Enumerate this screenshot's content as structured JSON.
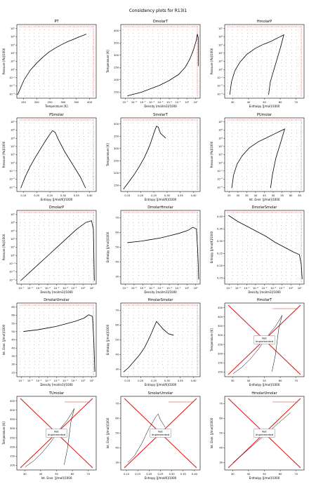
{
  "page": {
    "title": "Consistency plots for R13I1"
  },
  "colors": {
    "background": "#ffffff",
    "axis": "#000000",
    "curve": "#000000",
    "dots": "#555555",
    "highlight": "#e03030",
    "cross": "#e01010"
  },
  "chart_data": [
    {
      "id": "PT",
      "title": "PT",
      "type": "scatter",
      "xlabel": "Temperature [K]",
      "ylabel": "Pressure [Pa]/1000",
      "x_ticks": [
        "150",
        "200",
        "250",
        "300",
        "350",
        "400"
      ],
      "y_ticks": [
        "10⁻³",
        "10⁻²",
        "10⁻¹",
        "10⁰",
        "10¹",
        "10²",
        "10³",
        "10⁴",
        "10⁵"
      ],
      "xlim": [
        120,
        440
      ],
      "ylim_log10": [
        -3.4,
        5.2
      ],
      "y_log": true,
      "series": [
        {
          "role": "saturation",
          "x": [
            123,
            150,
            175,
            200,
            225,
            250,
            275,
            300,
            325,
            350,
            375,
            400
          ],
          "y": [
            -3.0,
            -1.2,
            -0.1,
            0.7,
            1.4,
            2.0,
            2.45,
            2.85,
            3.2,
            3.5,
            3.8,
            4.08
          ]
        }
      ],
      "not_implemented": false
    },
    {
      "id": "DmolarT",
      "title": "DmolarT",
      "type": "scatter",
      "xlabel": "Density [mol/m3]/1000",
      "ylabel": "Temperature [K]",
      "x_ticks": [
        "10⁻⁷",
        "10⁻⁶",
        "10⁻⁵",
        "10⁻⁴",
        "10⁻³",
        "10⁻²",
        "10⁻¹",
        "10⁰",
        "10¹"
      ],
      "y_ticks": [
        "150",
        "200",
        "250",
        "300",
        "350",
        "400"
      ],
      "x_log": true,
      "xlim_log10": [
        -7.2,
        1.3
      ],
      "ylim": [
        115,
        425
      ],
      "series": [
        {
          "role": "saturation",
          "x": [
            -6.5,
            -5,
            -4,
            -3,
            -2,
            -1,
            -0.3,
            0.2,
            0.6,
            0.9,
            1.0,
            1.1,
            1.1
          ],
          "y": [
            125,
            140,
            155,
            170,
            190,
            215,
            245,
            280,
            320,
            360,
            385,
            370,
            250
          ]
        }
      ],
      "not_implemented": false
    },
    {
      "id": "HmolarP",
      "title": "HmolarP",
      "type": "scatter",
      "xlabel": "Enthalpy [J/mol]/1000",
      "ylabel": "Pressure [Pa]/1000",
      "x_ticks": [
        "30",
        "40",
        "50",
        "60",
        "70"
      ],
      "y_ticks": [
        "10⁻³",
        "10⁻²",
        "10⁻¹",
        "10⁰",
        "10¹",
        "10²",
        "10³",
        "10⁴",
        "10⁵"
      ],
      "xlim": [
        25,
        72
      ],
      "ylim_log10": [
        -3.4,
        5.2
      ],
      "y_log": true,
      "series": [
        {
          "role": "saturation",
          "x": [
            28,
            29,
            31,
            34,
            38,
            43,
            48,
            52,
            55,
            57,
            59,
            60,
            58,
            55,
            52,
            51
          ],
          "y": [
            -3,
            -1.5,
            -0.2,
            0.8,
            1.7,
            2.4,
            2.9,
            3.2,
            3.5,
            3.7,
            3.9,
            4.0,
            2.5,
            0.5,
            -1.5,
            -3
          ]
        }
      ],
      "not_implemented": false
    },
    {
      "id": "PSmolar",
      "title": "PSmolar",
      "type": "scatter",
      "xlabel": "Entropy [J/mol/K]/1000",
      "ylabel": "Pressure [Pa]/1000",
      "x_ticks": [
        "0.15",
        "0.20",
        "0.25",
        "0.30",
        "0.35",
        "0.40"
      ],
      "y_ticks": [
        "10⁻³",
        "10⁻²",
        "10⁻¹",
        "10⁰",
        "10¹",
        "10²",
        "10³",
        "10⁴",
        "10⁵"
      ],
      "xlim": [
        0.12,
        0.42
      ],
      "ylim_log10": [
        -3.4,
        5.2
      ],
      "y_log": true,
      "series": [
        {
          "role": "saturation",
          "x": [
            0.135,
            0.15,
            0.17,
            0.19,
            0.21,
            0.23,
            0.245,
            0.255,
            0.265,
            0.275,
            0.3,
            0.33,
            0.36,
            0.38
          ],
          "y": [
            -3,
            -1.8,
            -0.5,
            0.6,
            1.6,
            2.6,
            3.3,
            3.7,
            3.5,
            2.8,
            1.3,
            -0.2,
            -1.7,
            -3
          ]
        }
      ],
      "not_implemented": false
    },
    {
      "id": "SmolarT",
      "title": "SmolarT",
      "type": "scatter",
      "xlabel": "Entropy [J/mol/K]/1000",
      "ylabel": "Temperature [K]",
      "x_ticks": [
        "0.15",
        "0.20",
        "0.25",
        "0.30",
        "0.35",
        "0.40"
      ],
      "y_ticks": [
        "150",
        "200",
        "250",
        "300",
        "350",
        "400"
      ],
      "xlim": [
        0.12,
        0.42
      ],
      "ylim": [
        115,
        425
      ],
      "series": [
        {
          "role": "saturation",
          "x": [
            0.13,
            0.15,
            0.17,
            0.19,
            0.21,
            0.23,
            0.245,
            0.255,
            0.262,
            0.27,
            0.29
          ],
          "y": [
            125,
            155,
            185,
            220,
            260,
            310,
            360,
            390,
            385,
            360,
            340
          ]
        }
      ],
      "not_implemented": false
    },
    {
      "id": "PUmolar",
      "title": "PUmolar",
      "type": "scatter",
      "xlabel": "Int. Ener. [J/mol]/1000",
      "ylabel": "Pressure [Pa]/1000",
      "x_ticks": [
        "25",
        "30",
        "35",
        "40",
        "45",
        "50",
        "55",
        "60",
        "65"
      ],
      "y_ticks": [
        "10⁻³",
        "10⁻²",
        "10⁻¹",
        "10⁰",
        "10¹",
        "10²",
        "10³",
        "10⁴",
        "10⁵"
      ],
      "xlim": [
        23,
        68
      ],
      "ylim_log10": [
        -3.4,
        5.2
      ],
      "y_log": true,
      "series": [
        {
          "role": "saturation",
          "x": [
            27,
            28,
            30,
            33,
            37,
            42,
            47,
            51,
            54,
            56,
            57,
            55,
            52,
            50,
            49
          ],
          "y": [
            -3,
            -1.5,
            -0.2,
            0.8,
            1.7,
            2.4,
            2.9,
            3.3,
            3.6,
            3.8,
            3.9,
            2.5,
            0.5,
            -1.5,
            -3
          ]
        }
      ],
      "not_implemented": false
    },
    {
      "id": "DmolarP",
      "title": "DmolarP",
      "type": "scatter",
      "xlabel": "Density [mol/m3]/1000",
      "ylabel": "Pressure [Pa]/1000",
      "x_ticks": [
        "10⁻⁷",
        "10⁻⁶",
        "10⁻⁵",
        "10⁻⁴",
        "10⁻³",
        "10⁻²",
        "10⁻¹",
        "10⁰",
        "10¹"
      ],
      "y_ticks": [
        "10⁻³",
        "10⁻²",
        "10⁻¹",
        "10⁰",
        "10¹",
        "10²",
        "10³",
        "10⁴",
        "10⁵"
      ],
      "x_log": true,
      "y_log": true,
      "xlim_log10": [
        -7.2,
        1.3
      ],
      "ylim_log10": [
        -3.4,
        5.2
      ],
      "series": [
        {
          "role": "saturation",
          "x": [
            -6.8,
            -5.8,
            -4.8,
            -3.8,
            -2.8,
            -1.8,
            -0.8,
            0.2,
            0.8,
            1.0,
            1.1
          ],
          "y": [
            -3,
            -2,
            -1,
            0,
            1,
            2,
            3,
            3.8,
            4.0,
            3.0,
            -3.0
          ]
        }
      ],
      "not_implemented": false
    },
    {
      "id": "DmolarHmolar",
      "title": "DmolarHmolar",
      "type": "scatter",
      "xlabel": "Density [mol/m3]/1000",
      "ylabel": "Enthalpy [J/mol]/1000",
      "x_ticks": [
        "10⁻⁷",
        "10⁻⁶",
        "10⁻⁵",
        "10⁻⁴",
        "10⁻³",
        "10⁻²",
        "10⁻¹",
        "10⁰",
        "10¹"
      ],
      "y_ticks": [
        "30",
        "40",
        "50",
        "60",
        "70"
      ],
      "x_log": true,
      "xlim_log10": [
        -7.2,
        1.3
      ],
      "ylim": [
        24,
        72
      ],
      "series": [
        {
          "role": "saturation",
          "x": [
            -6.5,
            -5,
            -4,
            -3,
            -2,
            -1,
            0,
            0.5,
            0.9,
            1.05,
            1.15
          ],
          "y": [
            51,
            52,
            53,
            54,
            55.5,
            57,
            59,
            61,
            60,
            45,
            27
          ]
        }
      ],
      "not_implemented": false
    },
    {
      "id": "DmolarSmolar",
      "title": "DmolarSmolar",
      "type": "scatter",
      "xlabel": "Density [mol/m3]/1000",
      "ylabel": "Entropy [J/mol/K]/1000",
      "x_ticks": [
        "10⁻⁷",
        "10⁻⁶",
        "10⁻⁵",
        "10⁻⁴",
        "10⁻³",
        "10⁻²",
        "10⁻¹",
        "10⁰",
        "10¹"
      ],
      "y_ticks": [
        "0.15",
        "0.20",
        "0.25",
        "0.30",
        "0.35",
        "0.40"
      ],
      "x_log": true,
      "xlim_log10": [
        -7.2,
        1.3
      ],
      "ylim": [
        0.12,
        0.42
      ],
      "series": [
        {
          "role": "saturation",
          "x": [
            -6.8,
            -5.8,
            -4.8,
            -3.8,
            -2.8,
            -1.8,
            -0.8,
            0.2,
            0.8,
            1.0,
            1.1
          ],
          "y": [
            0.4,
            0.375,
            0.355,
            0.335,
            0.315,
            0.29,
            0.27,
            0.25,
            0.24,
            0.2,
            0.14
          ]
        }
      ],
      "not_implemented": false
    },
    {
      "id": "DmolarUmolar",
      "title": "DmolarUmolar",
      "type": "scatter",
      "xlabel": "Density [mol/m3]/1000",
      "ylabel": "Int. Ener. [J/mol]/1000",
      "x_ticks": [
        "10⁻⁷",
        "10⁻⁶",
        "10⁻⁵",
        "10⁻⁴",
        "10⁻³",
        "10⁻²",
        "10⁻¹",
        "10⁰",
        "10¹"
      ],
      "y_ticks": [
        "25",
        "30",
        "35",
        "40",
        "45",
        "50",
        "55",
        "60",
        "65"
      ],
      "x_log": true,
      "xlim_log10": [
        -7.2,
        1.3
      ],
      "ylim": [
        23,
        67
      ],
      "series": [
        {
          "role": "saturation",
          "x": [
            -6.5,
            -5,
            -4,
            -3,
            -2,
            -1,
            0,
            0.5,
            0.9,
            1.05,
            1.15
          ],
          "y": [
            50,
            51,
            52,
            53,
            54.5,
            56,
            58,
            60,
            59,
            44,
            26
          ]
        }
      ],
      "not_implemented": false
    },
    {
      "id": "HmolarSmolar",
      "title": "HmolarSmolar",
      "type": "scatter",
      "xlabel": "Entropy [J/mol/K]/1000",
      "ylabel": "Enthalpy [J/mol]/1000",
      "x_ticks": [
        "0.15",
        "0.20",
        "0.25",
        "0.30",
        "0.35",
        "0.40"
      ],
      "y_ticks": [
        "30",
        "40",
        "50",
        "60",
        "70"
      ],
      "xlim": [
        0.12,
        0.42
      ],
      "ylim": [
        24,
        72
      ],
      "series": [
        {
          "role": "saturation",
          "x": [
            0.13,
            0.15,
            0.17,
            0.19,
            0.21,
            0.23,
            0.245,
            0.255,
            0.265,
            0.28,
            0.3,
            0.32
          ],
          "y": [
            27,
            30,
            34,
            38,
            43,
            50,
            56,
            60,
            58,
            55,
            52,
            51
          ]
        }
      ],
      "not_implemented": false
    },
    {
      "id": "HmolarT",
      "title": "HmolarT",
      "type": "line",
      "xlabel": "Enthalpy [J/mol]/1000",
      "ylabel": "Temperature [K]",
      "x_ticks": [
        "30",
        "40",
        "50",
        "60",
        "70"
      ],
      "y_ticks": [
        "100",
        "150",
        "200",
        "250",
        "300",
        "350",
        "400",
        "450"
      ],
      "xlim": [
        25,
        72
      ],
      "ylim": [
        95,
        455
      ],
      "series": [
        {
          "role": "saturation",
          "x": [
            30,
            35,
            40,
            45,
            50,
            55,
            58,
            59,
            57,
            55,
            53
          ],
          "y": [
            110,
            140,
            180,
            230,
            290,
            340,
            380,
            395,
            330,
            200,
            120
          ]
        }
      ],
      "not_implemented": true,
      "not_implemented_label": "Not\nImplemented"
    },
    {
      "id": "TUmolar",
      "title": "TUmolar",
      "type": "line",
      "xlabel": "Int. Ener. [J/mol]/1000",
      "ylabel": "Temperature [K]",
      "x_ticks": [
        "30",
        "40",
        "50",
        "60",
        "70"
      ],
      "y_ticks": [
        "100",
        "150",
        "200",
        "250",
        "300",
        "350",
        "400",
        "450"
      ],
      "xlim": [
        25,
        72
      ],
      "ylim": [
        95,
        455
      ],
      "series": [
        {
          "role": "saturation",
          "x": [
            30,
            35,
            40,
            45,
            50,
            55,
            58,
            59,
            57,
            55,
            53
          ],
          "y": [
            110,
            140,
            180,
            230,
            290,
            340,
            380,
            395,
            330,
            200,
            120
          ]
        }
      ],
      "not_implemented": true,
      "not_implemented_label": "Not\nImplemented"
    },
    {
      "id": "SmolarUmolar",
      "title": "SmolarUmolar",
      "type": "line",
      "xlabel": "Entropy [J/mol/K]/1000",
      "ylabel": "Int. Ener. [J/mol]/1000",
      "x_ticks": [
        "0.10",
        "0.15",
        "0.20",
        "0.25",
        "0.30",
        "0.35",
        "0.40"
      ],
      "y_ticks": [
        "30",
        "40",
        "50",
        "60",
        "70"
      ],
      "xlim": [
        0.1,
        0.44
      ],
      "ylim": [
        22,
        72
      ],
      "series": [
        {
          "role": "saturation",
          "x": [
            0.13,
            0.16,
            0.19,
            0.22,
            0.25,
            0.26,
            0.27,
            0.29
          ],
          "y": [
            27,
            32,
            40,
            50,
            58,
            60,
            56,
            51
          ]
        }
      ],
      "not_implemented": true,
      "not_implemented_label": "Not\nImplemented"
    },
    {
      "id": "HmolarUmolar",
      "title": "HmolarUmolar",
      "type": "line",
      "xlabel": "Enthalpy [J/mol]/1000",
      "ylabel": "Int. Ener. [J/mol]/1000",
      "x_ticks": [
        "30",
        "40",
        "50",
        "60",
        "70"
      ],
      "y_ticks": [
        "30",
        "40",
        "50",
        "60",
        "70"
      ],
      "xlim": [
        25,
        72
      ],
      "ylim": [
        22,
        72
      ],
      "series": [
        {
          "role": "saturation",
          "x": [
            30,
            35,
            40,
            45,
            50,
            55,
            60,
            62,
            64
          ],
          "y": [
            27,
            32,
            37,
            42,
            47,
            52,
            57,
            59,
            61
          ]
        }
      ],
      "not_implemented": true,
      "not_implemented_label": "Not\nImplemented"
    }
  ]
}
